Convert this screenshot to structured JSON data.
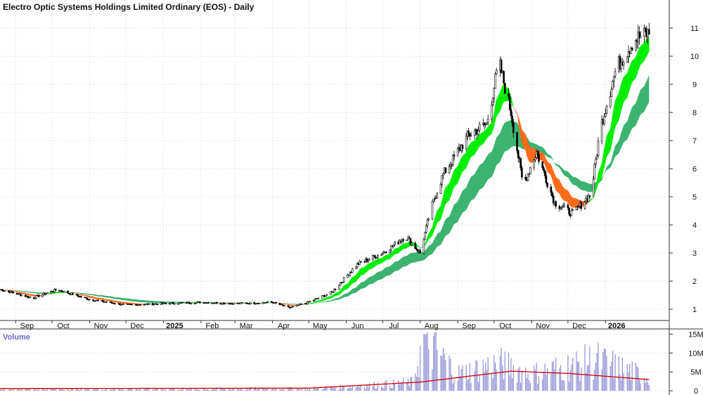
{
  "title": "Electro Optic Systems Holdings Limited Ordinary (EOS) - Daily",
  "volume_label": "Volume",
  "colors": {
    "candle": "#000000",
    "short_band_up": "#00ee00",
    "short_band_down": "#f5a8a8",
    "short_band_cross": "#ff6a1a",
    "long_band": "#3cb371",
    "volume_bar": "#8f8fd8",
    "volume_avg": "#cc0000",
    "grid": "#b0b0b0"
  },
  "chart_data": [
    {
      "type": "candlestick",
      "name": "price-panel",
      "y_axis_ticks": [
        1,
        2,
        3,
        4,
        5,
        6,
        7,
        8,
        9,
        10,
        11
      ],
      "ylim": [
        0.6,
        11.9
      ],
      "x_tick_labels": [
        "Sep",
        "Oct",
        "Nov",
        "Dec",
        "2025",
        "Feb",
        "Mar",
        "Apr",
        "May",
        "Jun",
        "Jul",
        "Aug",
        "Sep",
        "Oct",
        "Nov",
        "Dec",
        "2026"
      ],
      "bold_tick_labels": [
        "2025",
        "2026"
      ],
      "approx_close": [
        {
          "date": "2024-08-20",
          "close": 1.7
        },
        {
          "date": "2024-09-15",
          "close": 1.4
        },
        {
          "date": "2024-10-05",
          "close": 1.7
        },
        {
          "date": "2024-11-01",
          "close": 1.35
        },
        {
          "date": "2024-12-01",
          "close": 1.15
        },
        {
          "date": "2025-01-01",
          "close": 1.2
        },
        {
          "date": "2025-02-01",
          "close": 1.25
        },
        {
          "date": "2025-03-01",
          "close": 1.2
        },
        {
          "date": "2025-04-01",
          "close": 1.25
        },
        {
          "date": "2025-04-15",
          "close": 1.05
        },
        {
          "date": "2025-05-01",
          "close": 1.25
        },
        {
          "date": "2025-05-20",
          "close": 1.6
        },
        {
          "date": "2025-06-10",
          "close": 2.6
        },
        {
          "date": "2025-07-01",
          "close": 3.0
        },
        {
          "date": "2025-07-20",
          "close": 3.6
        },
        {
          "date": "2025-08-01",
          "close": 3.0
        },
        {
          "date": "2025-08-10",
          "close": 4.6
        },
        {
          "date": "2025-08-20",
          "close": 5.8
        },
        {
          "date": "2025-09-10",
          "close": 7.2
        },
        {
          "date": "2025-09-25",
          "close": 7.6
        },
        {
          "date": "2025-10-05",
          "close": 9.8
        },
        {
          "date": "2025-10-15",
          "close": 8.0
        },
        {
          "date": "2025-10-25",
          "close": 5.4
        },
        {
          "date": "2025-11-05",
          "close": 6.6
        },
        {
          "date": "2025-11-20",
          "close": 4.8
        },
        {
          "date": "2025-12-05",
          "close": 4.4
        },
        {
          "date": "2025-12-20",
          "close": 5.1
        },
        {
          "date": "2025-12-28",
          "close": 7.5
        },
        {
          "date": "2026-01-10",
          "close": 9.6
        },
        {
          "date": "2026-01-25",
          "close": 10.6
        },
        {
          "date": "2026-02-05",
          "close": 10.8
        }
      ]
    },
    {
      "type": "bar",
      "name": "volume-panel",
      "y_axis_ticks": [
        "15M",
        "10M",
        "5M",
        "0"
      ],
      "ylim": [
        0,
        16
      ],
      "approx_volume_millions": [
        {
          "date": "2024-09-01",
          "v": 0.5
        },
        {
          "date": "2025-01-01",
          "v": 0.6
        },
        {
          "date": "2025-05-01",
          "v": 0.7
        },
        {
          "date": "2025-06-15",
          "v": 1.5
        },
        {
          "date": "2025-07-25",
          "v": 2.5
        },
        {
          "date": "2025-08-05",
          "v": 15.0
        },
        {
          "date": "2025-09-01",
          "v": 5.0
        },
        {
          "date": "2025-10-05",
          "v": 8.0
        },
        {
          "date": "2025-11-01",
          "v": 5.0
        },
        {
          "date": "2025-12-25",
          "v": 9.0
        },
        {
          "date": "2026-02-05",
          "v": 4.0
        }
      ],
      "approx_average_millions": [
        {
          "date": "2024-09-01",
          "v": 0.6
        },
        {
          "date": "2025-05-01",
          "v": 0.7
        },
        {
          "date": "2025-08-01",
          "v": 2.3
        },
        {
          "date": "2025-10-15",
          "v": 5.2
        },
        {
          "date": "2025-12-01",
          "v": 4.6
        },
        {
          "date": "2026-02-05",
          "v": 3.0
        }
      ]
    }
  ]
}
